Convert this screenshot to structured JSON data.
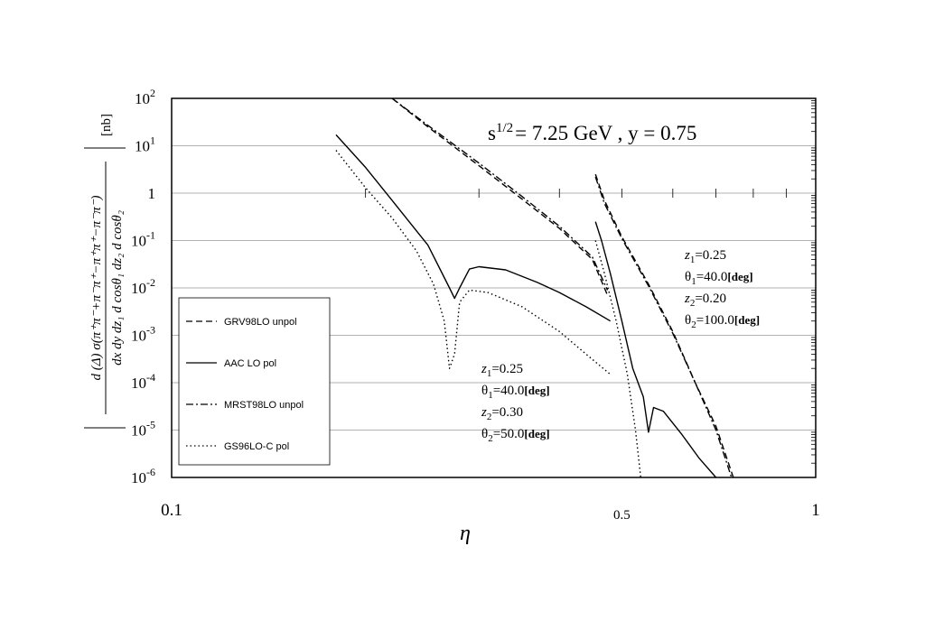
{
  "chart_data": {
    "type": "line",
    "title": "s^1/2 = 7.25 GeV , y = 0.75",
    "title_parts": {
      "s": "s",
      "sup": "1/2",
      "rest": "= 7.25 GeV ,  y = 0.75"
    },
    "xlabel": "η",
    "ylabel": {
      "numerator": "d (Δ) σ(π⁺π⁻+π⁻π⁺−π⁺π⁺−π⁻π⁻)",
      "denominator": "dx dy dz₁ d cosθ₁ dz₂ d cosθ₂",
      "unit": "[nb]"
    },
    "x_scale": "log",
    "y_scale": "log",
    "xlim": [
      0.1,
      1
    ],
    "ylim": [
      1e-06,
      100
    ],
    "x_tick_labels": [
      {
        "value": 0.1,
        "label": "0.1"
      },
      {
        "value": 0.5,
        "label": "0.5"
      },
      {
        "value": 1,
        "label": "1"
      }
    ],
    "y_tick_labels": [
      {
        "value": 100,
        "base": "10",
        "exp": "2"
      },
      {
        "value": 10,
        "base": "10",
        "exp": "1"
      },
      {
        "value": 1,
        "base": "1",
        "exp": ""
      },
      {
        "value": 0.1,
        "base": "10",
        "exp": "-1"
      },
      {
        "value": 0.01,
        "base": "10",
        "exp": "-2"
      },
      {
        "value": 0.001,
        "base": "10",
        "exp": "-3"
      },
      {
        "value": 0.0001,
        "base": "10",
        "exp": "-4"
      },
      {
        "value": 1e-05,
        "base": "10",
        "exp": "-5"
      },
      {
        "value": 1e-06,
        "base": "10",
        "exp": "-6"
      }
    ],
    "grid": "horizontal lines at each decade",
    "legend": {
      "placement": "lower-left",
      "entries": [
        {
          "label": "GRV98LO unpol",
          "dash": "dashed"
        },
        {
          "label": "AAC LO pol",
          "dash": "solid"
        },
        {
          "label": "MRST98LO unpol",
          "dash": "dashdot"
        },
        {
          "label": "GS96LO-C pol",
          "dash": "dotted"
        }
      ]
    },
    "annotations": [
      {
        "placement": "middle",
        "lines": [
          {
            "sym": "z",
            "sub": "1",
            "val": "=0.25",
            "unit": ""
          },
          {
            "sym": "θ",
            "sub": "1",
            "val": "=40.0",
            "unit": "[deg]"
          },
          {
            "sym": "z",
            "sub": "2",
            "val": "=0.30",
            "unit": ""
          },
          {
            "sym": "θ",
            "sub": "2",
            "val": "=50.0",
            "unit": "[deg]"
          }
        ]
      },
      {
        "placement": "right",
        "lines": [
          {
            "sym": "z",
            "sub": "1",
            "val": "=0.25",
            "unit": ""
          },
          {
            "sym": "θ",
            "sub": "1",
            "val": "=40.0",
            "unit": "[deg]"
          },
          {
            "sym": "z",
            "sub": "2",
            "val": "=0.20",
            "unit": ""
          },
          {
            "sym": "θ",
            "sub": "2",
            "val": "=100.0",
            "unit": "[deg]"
          }
        ]
      }
    ],
    "series": [
      {
        "name": "GRV98LO unpol",
        "group": "θ2=50.0[deg]",
        "dash": "dashed",
        "points": [
          [
            0.22,
            100
          ],
          [
            0.25,
            25
          ],
          [
            0.3,
            3.8
          ],
          [
            0.35,
            0.75
          ],
          [
            0.4,
            0.18
          ],
          [
            0.45,
            0.04
          ],
          [
            0.475,
            0.007
          ]
        ]
      },
      {
        "name": "MRST98LO unpol",
        "group": "θ2=50.0[deg]",
        "dash": "dashdot",
        "points": [
          [
            0.22,
            100
          ],
          [
            0.25,
            27
          ],
          [
            0.3,
            4.3
          ],
          [
            0.35,
            0.85
          ],
          [
            0.4,
            0.2
          ],
          [
            0.45,
            0.045
          ],
          [
            0.475,
            0.009
          ]
        ]
      },
      {
        "name": "AAC LO pol",
        "group": "θ2=50.0[deg]",
        "dash": "solid",
        "points": [
          [
            0.18,
            17
          ],
          [
            0.2,
            3.5
          ],
          [
            0.22,
            0.7
          ],
          [
            0.25,
            0.08
          ],
          [
            0.27,
            0.01
          ],
          [
            0.275,
            0.006
          ],
          [
            0.28,
            0.01
          ],
          [
            0.29,
            0.025
          ],
          [
            0.3,
            0.028
          ],
          [
            0.33,
            0.024
          ],
          [
            0.37,
            0.013
          ],
          [
            0.4,
            0.008
          ],
          [
            0.44,
            0.004
          ],
          [
            0.48,
            0.002
          ]
        ]
      },
      {
        "name": "GS96LO-C pol",
        "group": "θ2=50.0[deg]",
        "dash": "dotted",
        "points": [
          [
            0.18,
            8
          ],
          [
            0.2,
            1.3
          ],
          [
            0.22,
            0.3
          ],
          [
            0.24,
            0.06
          ],
          [
            0.255,
            0.012
          ],
          [
            0.265,
            0.002
          ],
          [
            0.27,
            0.0002
          ],
          [
            0.275,
            0.0004
          ],
          [
            0.28,
            0.005
          ],
          [
            0.29,
            0.009
          ],
          [
            0.31,
            0.008
          ],
          [
            0.35,
            0.004
          ],
          [
            0.4,
            0.0012
          ],
          [
            0.44,
            0.0004
          ],
          [
            0.48,
            0.00015
          ]
        ]
      },
      {
        "name": "GRV98LO unpol",
        "group": "θ2=100.0[deg]",
        "dash": "dashed",
        "points": [
          [
            0.455,
            2.5
          ],
          [
            0.47,
            0.7
          ],
          [
            0.5,
            0.12
          ],
          [
            0.55,
            0.012
          ],
          [
            0.6,
            0.0012
          ],
          [
            0.65,
            0.0001
          ],
          [
            0.7,
            1.2e-05
          ],
          [
            0.745,
            1e-06
          ]
        ]
      },
      {
        "name": "MRST98LO unpol",
        "group": "θ2=100.0[deg]",
        "dash": "dashdot",
        "points": [
          [
            0.455,
            2.2
          ],
          [
            0.47,
            0.6
          ],
          [
            0.5,
            0.11
          ],
          [
            0.55,
            0.011
          ],
          [
            0.6,
            0.0011
          ],
          [
            0.65,
            0.0001
          ],
          [
            0.7,
            1e-05
          ],
          [
            0.74,
            1e-06
          ]
        ]
      },
      {
        "name": "AAC LO pol",
        "group": "θ2=100.0[deg]",
        "dash": "solid",
        "points": [
          [
            0.455,
            0.25
          ],
          [
            0.465,
            0.1
          ],
          [
            0.48,
            0.02
          ],
          [
            0.5,
            0.002
          ],
          [
            0.52,
            0.0002
          ],
          [
            0.54,
            5e-05
          ],
          [
            0.55,
            9e-06
          ],
          [
            0.56,
            3e-05
          ],
          [
            0.58,
            2.5e-05
          ],
          [
            0.62,
            8e-06
          ],
          [
            0.66,
            2.5e-06
          ],
          [
            0.7,
            1e-06
          ]
        ]
      },
      {
        "name": "GS96LO-C pol",
        "group": "θ2=100.0[deg]",
        "dash": "dotted",
        "points": [
          [
            0.455,
            0.1
          ],
          [
            0.47,
            0.02
          ],
          [
            0.49,
            0.002
          ],
          [
            0.51,
            0.00015
          ],
          [
            0.525,
            1e-05
          ],
          [
            0.535,
            1e-06
          ]
        ]
      }
    ]
  }
}
